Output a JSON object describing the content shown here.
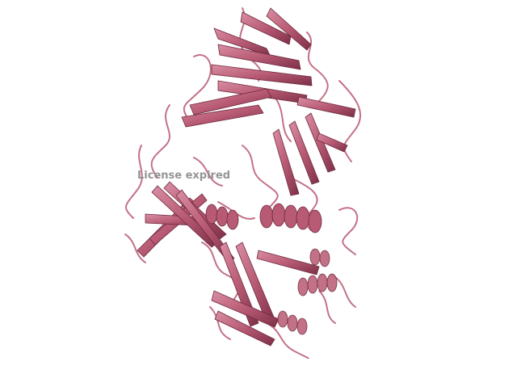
{
  "viewer": {
    "watermark_text": "License expired"
  },
  "render": {
    "representation": "cartoon",
    "background_color": "#ffffff",
    "ribbon_color": "#b85a74",
    "ribbon_dark": "#7d2f47",
    "ribbon_light": "#d98ea3",
    "loop_color": "#c06a80"
  }
}
